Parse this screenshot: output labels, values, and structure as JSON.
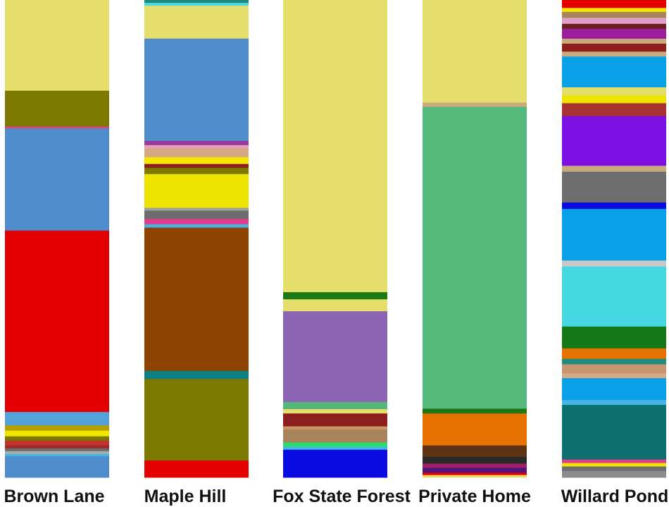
{
  "chart_data": {
    "type": "bar",
    "stacked": true,
    "normalized": true,
    "legend": "none",
    "grid": false,
    "axes_visible": false,
    "ylim": [
      0,
      100
    ],
    "categories": [
      "Brown Lane",
      "Maple Hill",
      "Fox State Forest",
      "Private Home",
      "Willard Pond"
    ],
    "columns": [
      {
        "category": "Brown Lane",
        "segments": [
          {
            "value": 19.0,
            "color": "#E6DE6A"
          },
          {
            "value": 7.5,
            "color": "#7C7800"
          },
          {
            "value": 0.4,
            "color": "#E0447C"
          },
          {
            "value": 21.4,
            "color": "#4E8CCC"
          },
          {
            "value": 38.0,
            "color": "#E20000"
          },
          {
            "value": 2.8,
            "color": "#54A0D8"
          },
          {
            "value": 1.1,
            "color": "#B4A000"
          },
          {
            "value": 1.2,
            "color": "#F2E600"
          },
          {
            "value": 0.9,
            "color": "#7C7800"
          },
          {
            "value": 1.0,
            "color": "#C43232"
          },
          {
            "value": 0.6,
            "color": "#9C2828"
          },
          {
            "value": 0.6,
            "color": "#6C6C6C"
          },
          {
            "value": 0.6,
            "color": "#ACACAC"
          },
          {
            "value": 0.5,
            "color": "#46B4E4"
          },
          {
            "value": 4.4,
            "color": "#4E8CCC"
          }
        ]
      },
      {
        "category": "Maple Hill",
        "segments": [
          {
            "value": 0.6,
            "color": "#1E8C7C"
          },
          {
            "value": 0.6,
            "color": "#4ED6E2"
          },
          {
            "value": 6.8,
            "color": "#E6DE6A"
          },
          {
            "value": 21.2,
            "color": "#4E8CCC"
          },
          {
            "value": 0.9,
            "color": "#963CA0"
          },
          {
            "value": 0.7,
            "color": "#E6A0B4"
          },
          {
            "value": 1.8,
            "color": "#D6A884"
          },
          {
            "value": 1.4,
            "color": "#F2E600"
          },
          {
            "value": 0.8,
            "color": "#8C1E1E"
          },
          {
            "value": 1.3,
            "color": "#7C7800"
          },
          {
            "value": 7.0,
            "color": "#EDE400"
          },
          {
            "value": 0.6,
            "color": "#A0A0A0"
          },
          {
            "value": 1.7,
            "color": "#6C6C6C"
          },
          {
            "value": 1.1,
            "color": "#E23C8C"
          },
          {
            "value": 0.7,
            "color": "#46B4E4"
          },
          {
            "value": 29.7,
            "color": "#8E4200"
          },
          {
            "value": 1.7,
            "color": "#0C8080"
          },
          {
            "value": 16.9,
            "color": "#7C7800"
          },
          {
            "value": 3.5,
            "color": "#E20000"
          }
        ]
      },
      {
        "category": "Fox State Forest",
        "segments": [
          {
            "value": 61.2,
            "color": "#E6DE6A"
          },
          {
            "value": 1.5,
            "color": "#1C7814"
          },
          {
            "value": 2.5,
            "color": "#E6DE6A"
          },
          {
            "value": 19.0,
            "color": "#8C64B4"
          },
          {
            "value": 1.5,
            "color": "#54B87C"
          },
          {
            "value": 0.9,
            "color": "#E6DE6A"
          },
          {
            "value": 2.7,
            "color": "#8C1E1E"
          },
          {
            "value": 0.7,
            "color": "#C89664"
          },
          {
            "value": 2.7,
            "color": "#A8845C"
          },
          {
            "value": 0.9,
            "color": "#28DC6E"
          },
          {
            "value": 0.6,
            "color": "#46B4E4"
          },
          {
            "value": 5.8,
            "color": "#0A0AE2"
          }
        ]
      },
      {
        "category": "Private Home",
        "segments": [
          {
            "value": 21.5,
            "color": "#E6DE6A"
          },
          {
            "value": 0.9,
            "color": "#C8AA7C"
          },
          {
            "value": 63.2,
            "color": "#56BA7C"
          },
          {
            "value": 1.0,
            "color": "#1C7814"
          },
          {
            "value": 6.7,
            "color": "#E67000"
          },
          {
            "value": 2.4,
            "color": "#5E3214"
          },
          {
            "value": 1.4,
            "color": "#282828"
          },
          {
            "value": 0.9,
            "color": "#A01E64"
          },
          {
            "value": 1.0,
            "color": "#50147C"
          },
          {
            "value": 0.5,
            "color": "#E20000"
          },
          {
            "value": 0.5,
            "color": "#E6DE6A"
          }
        ]
      },
      {
        "category": "Willard Pond",
        "segments": [
          {
            "value": 1.6,
            "color": "#E20000"
          },
          {
            "value": 0.8,
            "color": "#F2E600"
          },
          {
            "value": 1.2,
            "color": "#A8845C"
          },
          {
            "value": 1.2,
            "color": "#E2A0C8"
          },
          {
            "value": 1.0,
            "color": "#6E1E1E"
          },
          {
            "value": 2.0,
            "color": "#9C1E9C"
          },
          {
            "value": 1.0,
            "color": "#C8AA7C"
          },
          {
            "value": 1.6,
            "color": "#8C1E1E"
          },
          {
            "value": 1.0,
            "color": "#C8AA7C"
          },
          {
            "value": 6.2,
            "color": "#08A0E6"
          },
          {
            "value": 1.6,
            "color": "#E6DE6A"
          },
          {
            "value": 1.6,
            "color": "#EDE400"
          },
          {
            "value": 2.6,
            "color": "#A83232"
          },
          {
            "value": 10.0,
            "color": "#7C10E2"
          },
          {
            "value": 1.2,
            "color": "#C8AA7C"
          },
          {
            "value": 6.2,
            "color": "#6E6E6E"
          },
          {
            "value": 1.3,
            "color": "#0A0AE2"
          },
          {
            "value": 10.4,
            "color": "#08A0E6"
          },
          {
            "value": 1.2,
            "color": "#C8C8C8"
          },
          {
            "value": 12.1,
            "color": "#46D8E2"
          },
          {
            "value": 4.4,
            "color": "#147814"
          },
          {
            "value": 2.1,
            "color": "#E67000"
          },
          {
            "value": 1.1,
            "color": "#1E8C7C"
          },
          {
            "value": 1.8,
            "color": "#C8966E"
          },
          {
            "value": 1.0,
            "color": "#D6A884"
          },
          {
            "value": 4.4,
            "color": "#08A0E6"
          },
          {
            "value": 1.0,
            "color": "#46B4E4"
          },
          {
            "value": 11.0,
            "color": "#0C7070"
          },
          {
            "value": 0.7,
            "color": "#E23C8C"
          },
          {
            "value": 0.7,
            "color": "#F2E600"
          },
          {
            "value": 0.9,
            "color": "#6E6E6E"
          },
          {
            "value": 1.3,
            "color": "#8C8C8C"
          }
        ]
      }
    ]
  }
}
